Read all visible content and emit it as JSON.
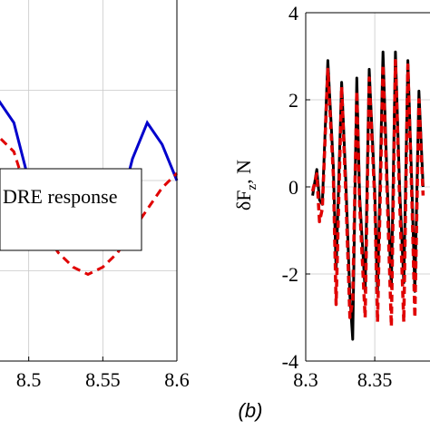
{
  "chart_data": [
    {
      "type": "line",
      "panel": "left (partial)",
      "x_ticks": [
        "8.5",
        "8.55",
        "8.6"
      ],
      "xlim": [
        8.45,
        8.6
      ],
      "legend_text": "DRE response",
      "grid": true,
      "series": [
        {
          "color": "#0000cc",
          "style": "solid",
          "x": [
            8.45,
            8.46,
            8.47,
            8.48,
            8.49,
            8.5,
            8.51,
            8.52,
            8.53,
            8.54,
            8.55,
            8.56,
            8.57,
            8.58,
            8.59,
            8.6
          ],
          "y": [
            0.55,
            0.6,
            0.68,
            0.72,
            0.66,
            0.5,
            0.4,
            0.36,
            0.33,
            0.31,
            0.33,
            0.4,
            0.56,
            0.66,
            0.6,
            0.5
          ]
        },
        {
          "color": "#e00000",
          "style": "dashed",
          "x": [
            8.45,
            8.46,
            8.47,
            8.48,
            8.49,
            8.5,
            8.51,
            8.52,
            8.53,
            8.54,
            8.55,
            8.56,
            8.57,
            8.58,
            8.59,
            8.6
          ],
          "y": [
            0.56,
            0.6,
            0.62,
            0.62,
            0.58,
            0.45,
            0.36,
            0.3,
            0.26,
            0.24,
            0.26,
            0.3,
            0.36,
            0.42,
            0.48,
            0.52
          ]
        }
      ]
    },
    {
      "type": "line",
      "panel": "(b)",
      "caption": "(b)",
      "ylabel_main": "δF",
      "ylabel_sub": "z",
      "ylabel_unit": ", N",
      "x_ticks": [
        "8.3",
        "8.35"
      ],
      "y_ticks": [
        "4",
        "2",
        "0",
        "-2",
        "-4"
      ],
      "xlim": [
        8.3,
        8.39
      ],
      "ylim": [
        -4,
        4
      ],
      "grid": true,
      "series": [
        {
          "color": "#000000",
          "style": "solid",
          "x": [
            8.305,
            8.308,
            8.31,
            8.312,
            8.316,
            8.32,
            8.322,
            8.326,
            8.329,
            8.332,
            8.334,
            8.337,
            8.339,
            8.343,
            8.346,
            8.35,
            8.352,
            8.356,
            8.359,
            8.362,
            8.365,
            8.368,
            8.371,
            8.374,
            8.377,
            8.379,
            8.382,
            8.385
          ],
          "y": [
            -0.2,
            0.4,
            -0.3,
            -0.4,
            2.9,
            0.5,
            -1.9,
            2.4,
            0.2,
            -2.5,
            -3.5,
            2.5,
            -0.2,
            -2.4,
            2.7,
            -0.1,
            -2.4,
            3.1,
            0.1,
            -2.3,
            3.1,
            0.0,
            -2.2,
            2.9,
            -0.1,
            -2.4,
            2.2,
            0.0
          ]
        },
        {
          "color": "#e00000",
          "style": "dashed",
          "x": [
            8.305,
            8.308,
            8.31,
            8.312,
            8.316,
            8.32,
            8.322,
            8.326,
            8.329,
            8.332,
            8.334,
            8.337,
            8.339,
            8.343,
            8.346,
            8.35,
            8.352,
            8.356,
            8.359,
            8.362,
            8.365,
            8.368,
            8.371,
            8.374,
            8.377,
            8.379,
            8.382,
            8.385
          ],
          "y": [
            -0.1,
            0.3,
            -0.8,
            -0.5,
            2.7,
            0.3,
            -2.7,
            2.3,
            -0.1,
            -3.0,
            -2.6,
            2.2,
            -0.4,
            -3.0,
            2.5,
            -0.3,
            -3.1,
            2.8,
            -0.2,
            -3.2,
            2.9,
            -0.3,
            -3.1,
            2.8,
            -0.4,
            -3.0,
            2.0,
            -0.2
          ]
        }
      ]
    }
  ]
}
